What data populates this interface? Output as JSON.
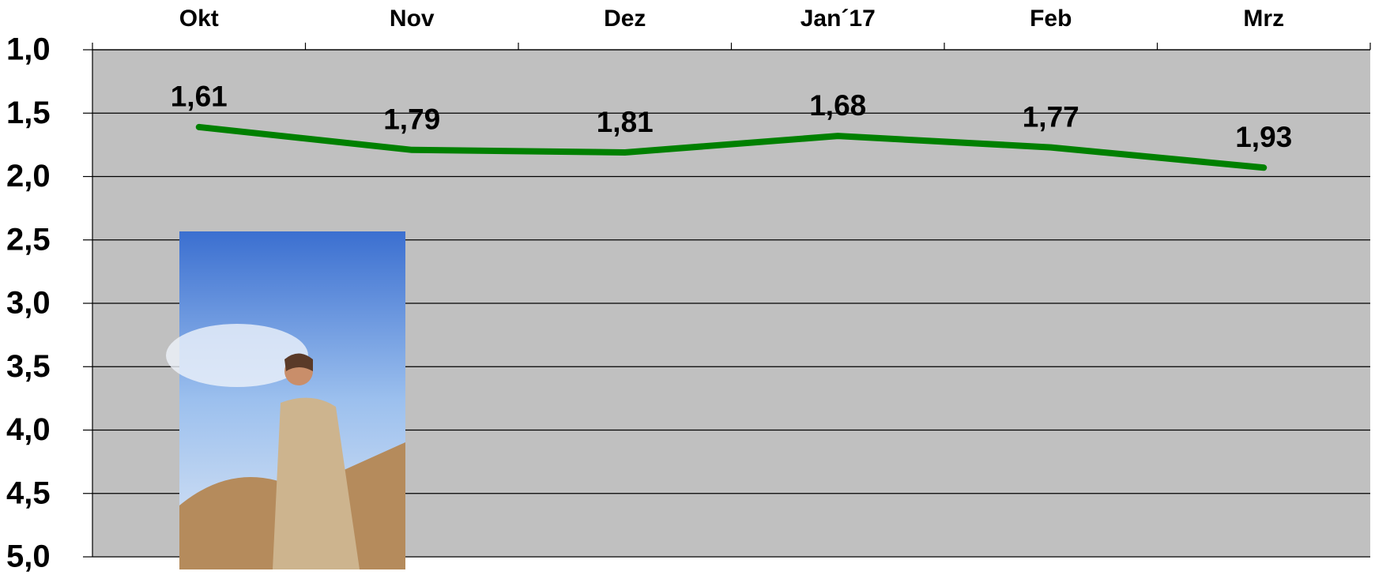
{
  "chart_data": {
    "type": "line",
    "categories": [
      "Okt",
      "Nov",
      "Dez",
      "Jan´17",
      "Feb",
      "Mrz"
    ],
    "series": [
      {
        "color": "#008000",
        "values": [
          1.61,
          1.79,
          1.81,
          1.68,
          1.77,
          1.93
        ],
        "value_labels": [
          "1,61",
          "1,79",
          "1,81",
          "1,68",
          "1,77",
          "1,93"
        ]
      }
    ],
    "ylim": [
      1,
      5
    ],
    "y_inverted": true,
    "yticks": [
      {
        "value": 1,
        "label": "1,0"
      },
      {
        "value": 1.5,
        "label": "1,5"
      },
      {
        "value": 2,
        "label": "2,0"
      },
      {
        "value": 2.5,
        "label": "2,5"
      },
      {
        "value": 3,
        "label": "3,0"
      },
      {
        "value": 3.5,
        "label": "3,5"
      },
      {
        "value": 4,
        "label": "4,0"
      },
      {
        "value": 4.5,
        "label": "4,5"
      },
      {
        "value": 5,
        "label": "5,0"
      }
    ],
    "grid": true,
    "background": "#c0c0c0"
  }
}
